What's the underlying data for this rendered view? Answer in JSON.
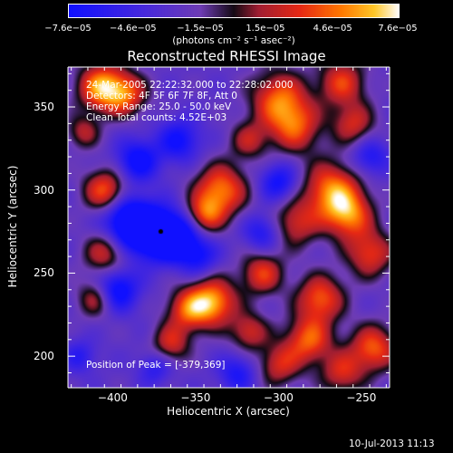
{
  "chart_data": {
    "type": "heatmap",
    "title": "Reconstructed RHESSI Image",
    "xlabel": "Heliocentric X (arcsec)",
    "ylabel": "Heliocentric Y (arcsec)",
    "xlim": [
      -427,
      -233
    ],
    "ylim": [
      181,
      374
    ],
    "xticks": [
      -400,
      -350,
      -300,
      -250
    ],
    "yticks": [
      200,
      250,
      300,
      350
    ],
    "xtick_labels": [
      "−400",
      "−350",
      "−300",
      "−250"
    ],
    "ytick_labels": [
      "200",
      "250",
      "300",
      "350"
    ],
    "colorbar": {
      "min": -7.6e-05,
      "max": 7.6e-05,
      "tick_labels": [
        "−7.6e−05",
        "−4.6e−05",
        "−1.5e−05",
        "1.5e−05",
        "4.6e−05",
        "7.6e−05"
      ],
      "tick_values": [
        -7.6e-05,
        -4.6e-05,
        -1.5e-05,
        1.5e-05,
        4.6e-05,
        7.6e-05
      ],
      "units": "(photons cm⁻² s⁻¹ asec⁻²)",
      "colors": [
        "#1010ff",
        "#7030c0",
        "#c03040",
        "#ff4000",
        "#ff9000",
        "#ffffff"
      ]
    },
    "peak": [
      -379,
      369
    ],
    "peak_marker": [
      -371,
      275
    ],
    "info_lines": [
      "24-Mar-2005 22:22:32.000 to 22:28:02.000",
      "Detectors: 4F 5F 6F 7F 8F, Att 0",
      "Energy Range: 25.0 - 50.0 keV",
      "Clean    Total counts: 4.52E+03"
    ],
    "peak_label": "Position of Peak = [-379,369]",
    "blobs": [
      {
        "x": -407,
        "y": 362,
        "v": 1.0,
        "s": 10
      },
      {
        "x": -392,
        "y": 358,
        "v": 0.7,
        "s": 9
      },
      {
        "x": -405,
        "y": 300,
        "v": 0.8,
        "s": 9
      },
      {
        "x": -405,
        "y": 262,
        "v": 0.6,
        "s": 9
      },
      {
        "x": -410,
        "y": 235,
        "v": 0.6,
        "s": 8
      },
      {
        "x": -418,
        "y": 335,
        "v": 0.5,
        "s": 7
      },
      {
        "x": -335,
        "y": 300,
        "v": 0.9,
        "s": 11
      },
      {
        "x": -345,
        "y": 285,
        "v": 0.7,
        "s": 8
      },
      {
        "x": -340,
        "y": 233,
        "v": 1.0,
        "s": 10
      },
      {
        "x": -355,
        "y": 228,
        "v": 0.7,
        "s": 9
      },
      {
        "x": -365,
        "y": 208,
        "v": 0.6,
        "s": 8
      },
      {
        "x": -318,
        "y": 215,
        "v": 0.6,
        "s": 8
      },
      {
        "x": -310,
        "y": 250,
        "v": 0.7,
        "s": 9
      },
      {
        "x": -300,
        "y": 355,
        "v": 0.8,
        "s": 12
      },
      {
        "x": -290,
        "y": 338,
        "v": 0.7,
        "s": 11
      },
      {
        "x": -262,
        "y": 365,
        "v": 0.7,
        "s": 10
      },
      {
        "x": -255,
        "y": 340,
        "v": 0.6,
        "s": 9
      },
      {
        "x": -268,
        "y": 300,
        "v": 0.9,
        "s": 12
      },
      {
        "x": -258,
        "y": 285,
        "v": 0.8,
        "s": 10
      },
      {
        "x": -245,
        "y": 262,
        "v": 0.7,
        "s": 10
      },
      {
        "x": -290,
        "y": 280,
        "v": 0.6,
        "s": 10
      },
      {
        "x": -275,
        "y": 235,
        "v": 0.8,
        "s": 10
      },
      {
        "x": -282,
        "y": 210,
        "v": 0.8,
        "s": 10
      },
      {
        "x": -300,
        "y": 195,
        "v": 0.6,
        "s": 9
      },
      {
        "x": -243,
        "y": 205,
        "v": 0.8,
        "s": 10
      },
      {
        "x": -262,
        "y": 190,
        "v": 0.6,
        "s": 9
      },
      {
        "x": -318,
        "y": 330,
        "v": 0.5,
        "s": 8
      },
      {
        "x": -378,
        "y": 275,
        "v": -1.0,
        "s": 11
      },
      {
        "x": -362,
        "y": 272,
        "v": -0.9,
        "s": 10
      },
      {
        "x": -392,
        "y": 282,
        "v": -0.8,
        "s": 10
      },
      {
        "x": -398,
        "y": 240,
        "v": -0.8,
        "s": 9
      },
      {
        "x": -385,
        "y": 318,
        "v": -0.7,
        "s": 9
      },
      {
        "x": -360,
        "y": 330,
        "v": -0.6,
        "s": 9
      },
      {
        "x": -348,
        "y": 260,
        "v": -0.5,
        "s": 8
      },
      {
        "x": -300,
        "y": 305,
        "v": -0.6,
        "s": 8
      },
      {
        "x": -310,
        "y": 275,
        "v": -0.5,
        "s": 8
      },
      {
        "x": -325,
        "y": 190,
        "v": -0.5,
        "s": 8
      },
      {
        "x": -245,
        "y": 320,
        "v": -0.5,
        "s": 8
      },
      {
        "x": -375,
        "y": 193,
        "v": -0.4,
        "s": 7
      },
      {
        "x": -420,
        "y": 200,
        "v": -0.4,
        "s": 7
      }
    ]
  },
  "footer": {
    "date": "10-Jul-2013 11:13"
  }
}
